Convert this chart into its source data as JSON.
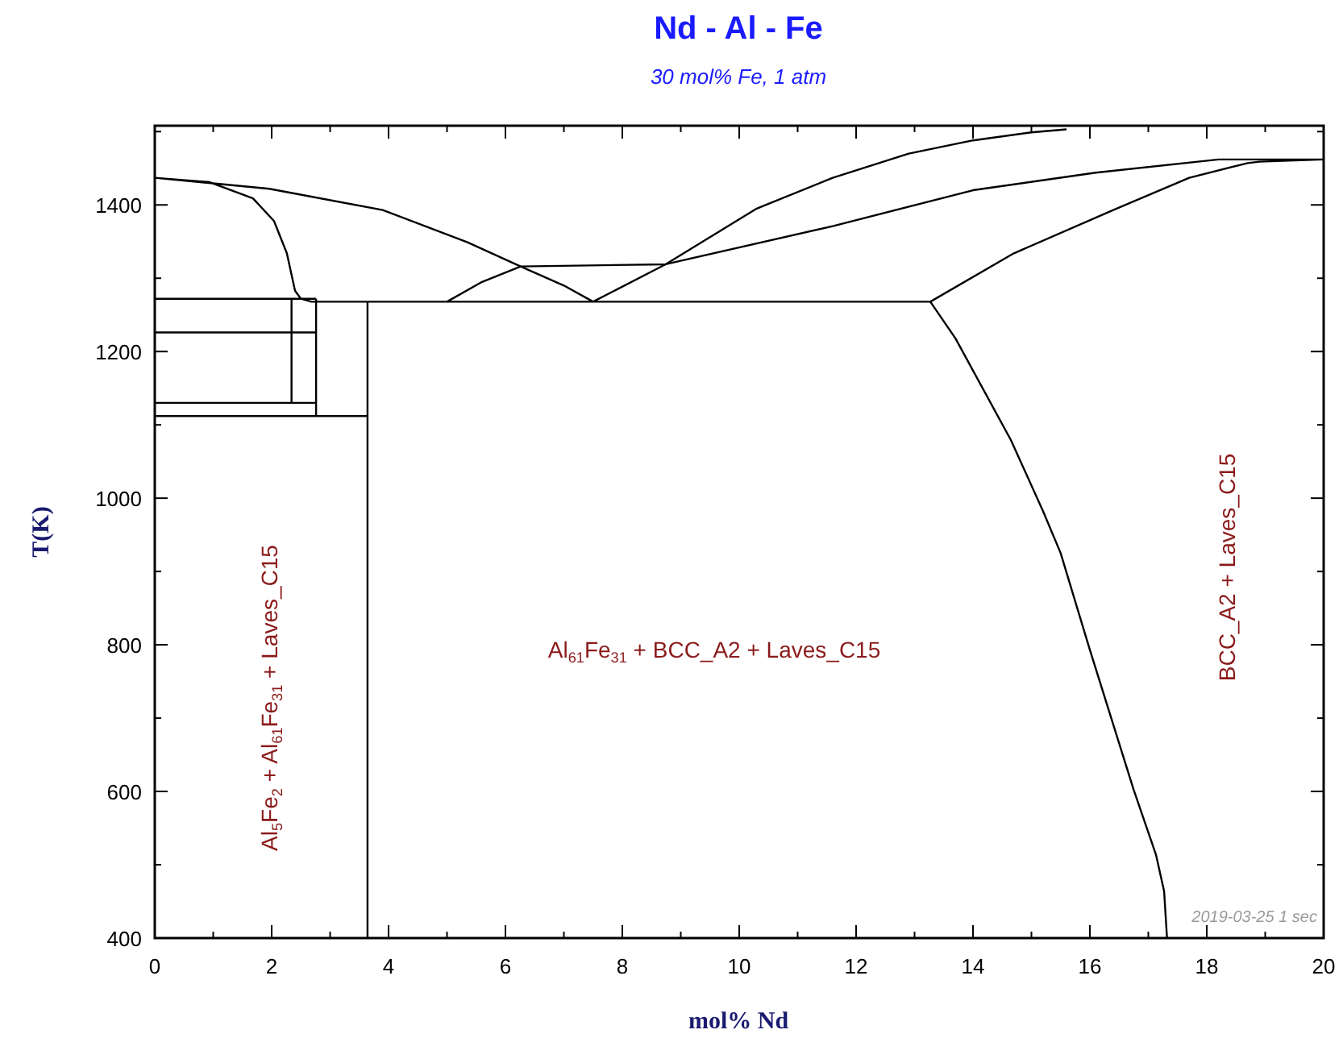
{
  "chart_data": {
    "type": "line",
    "title": "Nd - Al - Fe",
    "subtitle": "30 mol% Fe, 1 atm",
    "xlabel": "mol% Nd",
    "ylabel": "T(K)",
    "xlim": [
      0,
      20
    ],
    "ylim": [
      400,
      1508
    ],
    "xticks": [
      0,
      {
        "value": 1,
        "label": null
      },
      2,
      {
        "value": 3,
        "label": null
      },
      4,
      {
        "value": 5,
        "label": null
      },
      6,
      {
        "value": 7,
        "label": null
      },
      8,
      {
        "value": 9,
        "label": null
      },
      10,
      {
        "value": 11,
        "label": null
      },
      12,
      {
        "value": 13,
        "label": null
      },
      14,
      {
        "value": 15,
        "label": null
      },
      16,
      {
        "value": 17,
        "label": null
      },
      18,
      {
        "value": 19,
        "label": null
      },
      20
    ],
    "yticks": [
      400,
      {
        "value": 500,
        "label": null
      },
      600,
      {
        "value": 700,
        "label": null
      },
      800,
      {
        "value": 900,
        "label": null
      },
      1000,
      {
        "value": 1100,
        "label": null
      },
      1200,
      {
        "value": 1300,
        "label": null
      },
      1400,
      {
        "value": 1500,
        "label": null
      }
    ],
    "grid": false,
    "marker": "none",
    "line_style": "solid",
    "series": [
      {
        "color": "#000000",
        "x": [
          13.27,
          2.68,
          2.5,
          2.4,
          2.26,
          2.04,
          1.68,
          0.94,
          0,
          1.96,
          3.9,
          5.35,
          6.26,
          7.0,
          7.5,
          8.74,
          10.3,
          11.6,
          12.9,
          14.0,
          15.0,
          15.6
        ],
        "values": [
          1268,
          1268,
          1272,
          1283,
          1334,
          1378,
          1409,
          1431,
          1437,
          1422,
          1393,
          1349,
          1316,
          1290,
          1268,
          1319,
          1395,
          1437,
          1470,
          1488,
          1499,
          1503
        ]
      },
      {
        "color": "#000000",
        "x": [
          0,
          2.76
        ],
        "values": [
          1272,
          1272
        ]
      },
      {
        "color": "#000000",
        "x": [
          0,
          2.76
        ],
        "values": [
          1226,
          1226
        ]
      },
      {
        "color": "#000000",
        "x": [
          0,
          2.76
        ],
        "values": [
          1130,
          1130
        ]
      },
      {
        "color": "#000000",
        "x": [
          0,
          3.64
        ],
        "values": [
          1112,
          1112
        ]
      },
      {
        "color": "#000000",
        "x": [
          2.34,
          2.34
        ],
        "values": [
          1272,
          1130
        ]
      },
      {
        "color": "#000000",
        "x": [
          2.76,
          2.76
        ],
        "values": [
          1272,
          1112
        ]
      },
      {
        "color": "#000000",
        "x": [
          3.64,
          3.64
        ],
        "values": [
          1268,
          400
        ]
      },
      {
        "color": "#000000",
        "x": [
          5.0,
          5.6,
          6.26,
          8.74,
          11.6,
          14.0,
          16.1,
          18.2,
          20,
          18.9,
          18.7,
          17.7,
          16.4,
          14.7,
          13.27
        ],
        "values": [
          1268,
          1295,
          1316,
          1319,
          1371,
          1420,
          1444,
          1462,
          1462,
          1459,
          1457,
          1437,
          1393,
          1334,
          1268
        ]
      },
      {
        "color": "#000000",
        "x": [
          13.27,
          13.7,
          14.65,
          15.2,
          15.5,
          16.0,
          16.75,
          17.13,
          17.27,
          17.32
        ],
        "values": [
          1268,
          1218,
          1079,
          982,
          925,
          793,
          602,
          514,
          464,
          400
        ]
      }
    ],
    "annotations": [
      "Al$_{5}$Fe$_{2}$ + Al$_{61}$Fe$_{31}$ + Laves_C15",
      "Al$_{61}$Fe$_{31}$ + BCC_A2 + Laves_C15",
      "BCC_A2 + Laves_C15",
      "2019-03-25  1 sec"
    ]
  }
}
